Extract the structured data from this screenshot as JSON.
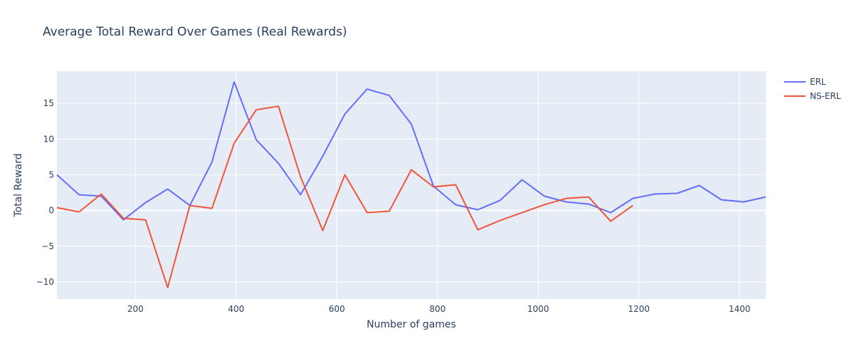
{
  "chart_data": {
    "type": "line",
    "title": "Average Total Reward Over Games (Real Rewards)",
    "xlabel": "Number of games",
    "ylabel": "Total Reward",
    "xlim": [
      44,
      1452
    ],
    "ylim": [
      -12.4,
      19.5
    ],
    "xticks": [
      200,
      400,
      600,
      800,
      1000,
      1200,
      1400
    ],
    "yticks": [
      -10,
      -5,
      0,
      5,
      10,
      15
    ],
    "grid": true,
    "legend_position": "top-right",
    "series": [
      {
        "name": "ERL",
        "color": "#636efa",
        "x": [
          44,
          88,
          132,
          176,
          220,
          264,
          308,
          352,
          396,
          440,
          484,
          528,
          572,
          616,
          660,
          704,
          748,
          792,
          836,
          880,
          924,
          968,
          1012,
          1056,
          1100,
          1144,
          1188,
          1232,
          1276,
          1320,
          1364,
          1408,
          1452
        ],
        "y": [
          5.0,
          2.2,
          2.0,
          -1.3,
          1.1,
          3.0,
          0.7,
          6.8,
          18.0,
          9.9,
          6.6,
          2.2,
          7.6,
          13.5,
          17.0,
          16.1,
          12.1,
          3.4,
          0.8,
          0.1,
          1.4,
          4.3,
          2.0,
          1.2,
          0.9,
          -0.3,
          1.7,
          2.3,
          2.4,
          3.5,
          1.5,
          1.2,
          1.9
        ]
      },
      {
        "name": "NS-ERL",
        "color": "#ef553b",
        "x": [
          44,
          88,
          132,
          176,
          220,
          264,
          308,
          352,
          396,
          440,
          484,
          528,
          572,
          616,
          660,
          704,
          748,
          792,
          836,
          880,
          924,
          968,
          1012,
          1056,
          1100,
          1144,
          1188
        ],
        "y": [
          0.4,
          -0.2,
          2.3,
          -1.1,
          -1.3,
          -10.8,
          0.7,
          0.3,
          9.4,
          14.1,
          14.6,
          4.7,
          -2.8,
          5.0,
          -0.3,
          -0.1,
          5.7,
          3.3,
          3.6,
          -2.7,
          -1.4,
          -0.3,
          0.8,
          1.7,
          1.9,
          -1.5,
          0.7
        ]
      }
    ]
  }
}
